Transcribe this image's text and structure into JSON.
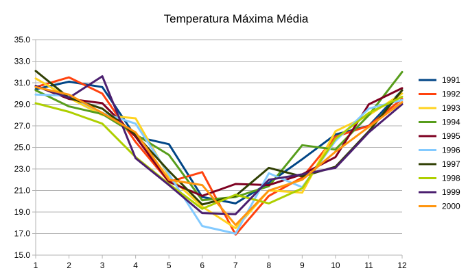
{
  "chart_data": {
    "type": "line",
    "title": "Temperatura Máxima Média",
    "xlabel": "",
    "ylabel": "",
    "x": [
      1,
      2,
      3,
      4,
      5,
      6,
      7,
      8,
      9,
      10,
      11,
      12
    ],
    "ylim": [
      15.0,
      35.0
    ],
    "yticks": [
      "15.0",
      "17.0",
      "19.0",
      "21.0",
      "23.0",
      "25.0",
      "27.0",
      "29.0",
      "31.0",
      "33.0",
      "35.0"
    ],
    "grid": "horizontal",
    "legend_position": "right",
    "series": [
      {
        "name": "1991",
        "color": "#004586",
        "values": [
          30.4,
          31.1,
          30.6,
          26.0,
          25.3,
          20.4,
          19.8,
          21.7,
          23.9,
          26.2,
          27.0,
          30.3
        ]
      },
      {
        "name": "1992",
        "color": "#ff420e",
        "values": [
          30.6,
          31.5,
          30.0,
          25.5,
          21.8,
          22.7,
          16.9,
          20.5,
          22.2,
          26.0,
          27.0,
          29.5
        ]
      },
      {
        "name": "1993",
        "color": "#ffd320",
        "values": [
          31.4,
          29.6,
          28.0,
          27.7,
          22.3,
          19.5,
          17.5,
          21.0,
          20.8,
          26.5,
          28.0,
          30.0
        ]
      },
      {
        "name": "1994",
        "color": "#579d1c",
        "values": [
          30.3,
          28.8,
          28.1,
          26.2,
          24.3,
          20.1,
          20.4,
          21.4,
          25.2,
          24.8,
          28.0,
          32.0
        ]
      },
      {
        "name": "1995",
        "color": "#7e0021",
        "values": [
          30.7,
          29.5,
          29.1,
          26.0,
          21.8,
          20.5,
          21.6,
          21.5,
          22.5,
          24.1,
          29.0,
          30.5
        ]
      },
      {
        "name": "1996",
        "color": "#83caff",
        "values": [
          29.9,
          29.8,
          28.2,
          27.2,
          22.5,
          17.7,
          17.0,
          22.6,
          21.3,
          25.6,
          28.6,
          29.4
        ]
      },
      {
        "name": "1997",
        "color": "#314004",
        "values": [
          32.1,
          29.6,
          28.6,
          26.2,
          22.8,
          19.7,
          20.5,
          23.1,
          22.3,
          23.2,
          26.5,
          30.3
        ]
      },
      {
        "name": "1998",
        "color": "#aecf00",
        "values": [
          29.1,
          28.3,
          27.2,
          24.1,
          21.6,
          19.3,
          20.6,
          19.8,
          21.2,
          25.8,
          28.2,
          29.7
        ]
      },
      {
        "name": "1999",
        "color": "#4b1f6f",
        "values": [
          30.7,
          29.6,
          31.6,
          24.0,
          21.5,
          18.9,
          18.8,
          22.0,
          22.5,
          23.1,
          26.4,
          29.0
        ]
      },
      {
        "name": "2000",
        "color": "#ff950e",
        "values": [
          30.6,
          29.9,
          28.2,
          26.4,
          22.0,
          21.5,
          17.8,
          21.0,
          22.0,
          24.6,
          26.9,
          29.2
        ]
      }
    ]
  }
}
